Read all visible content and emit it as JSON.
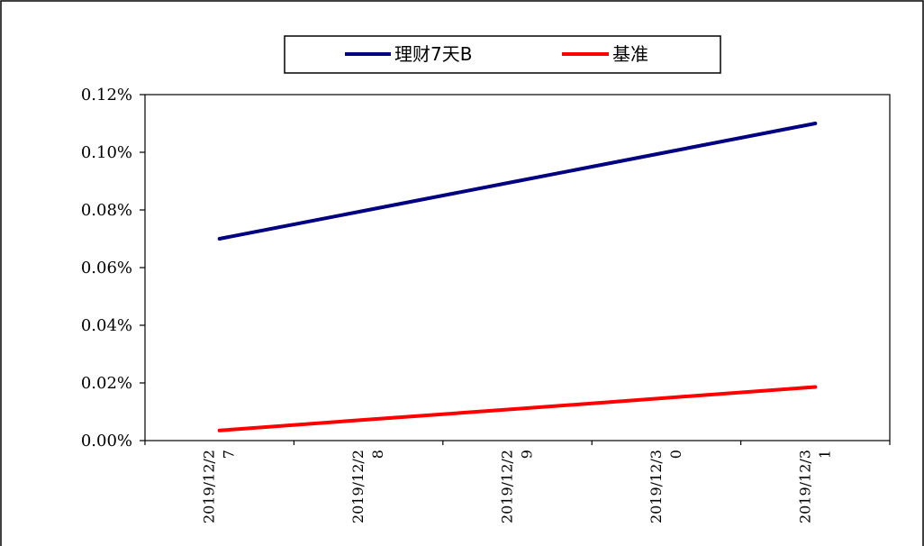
{
  "chart_data": {
    "type": "line",
    "categories": [
      "2019/12/27",
      "2019/12/28",
      "2019/12/29",
      "2019/12/30",
      "2019/12/31"
    ],
    "x_tick_labels": [
      [
        "2019/12/2",
        "7"
      ],
      [
        "2019/12/2",
        "8"
      ],
      [
        "2019/12/2",
        "9"
      ],
      [
        "2019/12/3",
        "0"
      ],
      [
        "2019/12/3",
        "1"
      ]
    ],
    "series": [
      {
        "name": "理财7天B",
        "color": "#000080",
        "values": [
          0.07,
          0.08,
          0.09,
          0.1,
          0.11
        ]
      },
      {
        "name": "基准",
        "color": "#ff0000",
        "values": [
          0.0035,
          0.0073,
          0.011,
          0.0148,
          0.0186
        ]
      }
    ],
    "ylim": [
      0,
      0.12
    ],
    "y_ticks": [
      0,
      0.02,
      0.04,
      0.06,
      0.08,
      0.1,
      0.12
    ],
    "y_tick_labels": [
      "0.00%",
      "0.02%",
      "0.04%",
      "0.06%",
      "0.08%",
      "0.10%",
      "0.12%"
    ],
    "legend_position": "top-center",
    "grid": false
  }
}
